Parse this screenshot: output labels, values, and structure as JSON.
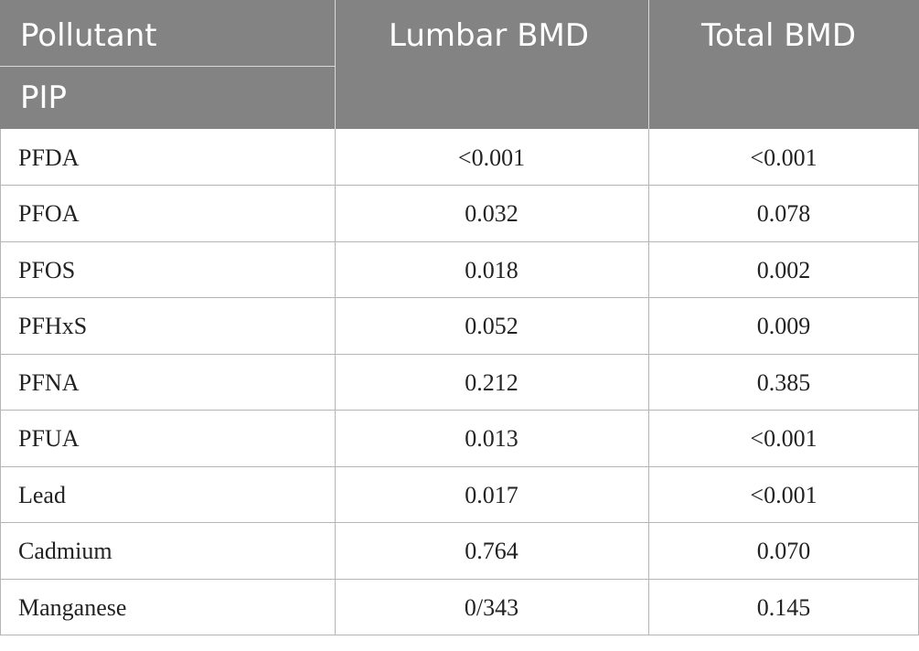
{
  "table": {
    "headers": {
      "pollutant": "Pollutant",
      "pip": "PIP",
      "lumbar": "Lumbar BMD",
      "total": "Total BMD"
    },
    "rows": [
      {
        "name": "PFDA",
        "lumbar": "<0.001",
        "total": "<0.001"
      },
      {
        "name": "PFOA",
        "lumbar": "0.032",
        "total": "0.078"
      },
      {
        "name": "PFOS",
        "lumbar": "0.018",
        "total": "0.002"
      },
      {
        "name": "PFHxS",
        "lumbar": "0.052",
        "total": "0.009"
      },
      {
        "name": "PFNA",
        "lumbar": "0.212",
        "total": "0.385"
      },
      {
        "name": "PFUA",
        "lumbar": "0.013",
        "total": "<0.001"
      },
      {
        "name": "Lead",
        "lumbar": "0.017",
        "total": "<0.001"
      },
      {
        "name": "Cadmium",
        "lumbar": "0.764",
        "total": "0.070"
      },
      {
        "name": "Manganese",
        "lumbar": "0/343",
        "total": "0.145"
      }
    ]
  }
}
